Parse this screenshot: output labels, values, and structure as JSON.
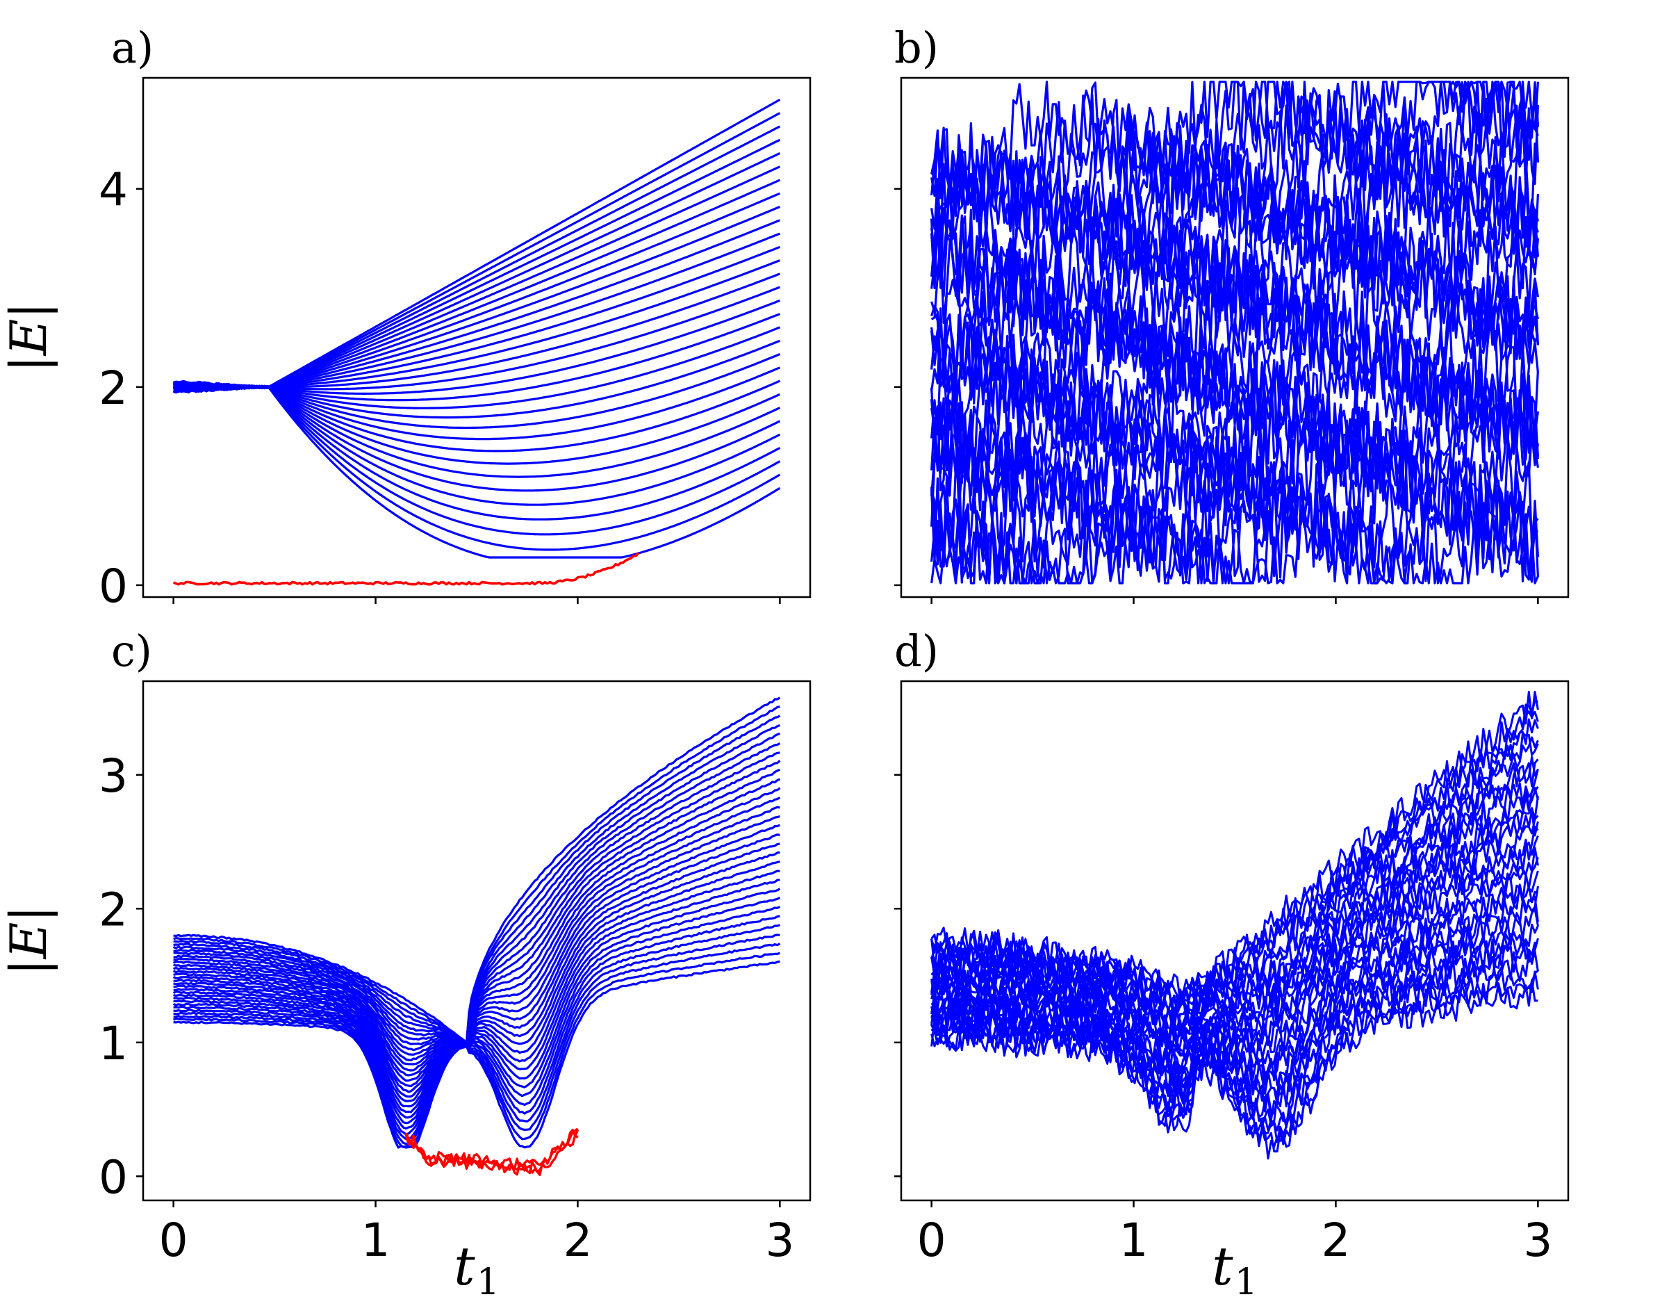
{
  "figure": {
    "panel_labels": [
      "a)",
      "b)",
      "c)",
      "d)"
    ],
    "ylabel": "|E|",
    "xlabel_main": "t",
    "xlabel_sub": "1"
  },
  "colors": {
    "bulk": "#0000ff",
    "edge": "#ff0000",
    "axes": "#000000",
    "background": "#ffffff"
  },
  "chart_data": [
    {
      "panel": "a)",
      "type": "line",
      "xlim": [
        -0.15,
        3.15
      ],
      "ylim": [
        -0.12,
        5.12
      ],
      "xticks": [
        0,
        1,
        2,
        3
      ],
      "yticks": [
        0,
        2,
        4
      ],
      "tick_labels_x": false,
      "tick_labels_y": true,
      "ytick_labels": [
        "0",
        "2",
        "4"
      ],
      "grid": false,
      "legend": "none",
      "series": [
        {
          "color": "blue",
          "kind": "bulk bands",
          "count": 30,
          "start_x": 0,
          "end_x": 3,
          "initial_value": 2.0,
          "initial_spread": [
            1.95,
            2.05
          ],
          "crossing_x": 0.47,
          "crossing_y": 2.0,
          "end_values_range": [
            0.98,
            4.9
          ],
          "lowest_band_min": {
            "x": 2.0,
            "y": 0.3
          }
        },
        {
          "color": "red",
          "kind": "zero mode",
          "x_range": [
            0,
            2.3
          ],
          "value_flat": 0.02,
          "rises_from_x": 1.8,
          "end_value": 0.32
        }
      ]
    },
    {
      "panel": "b)",
      "type": "line",
      "xlim": [
        -0.15,
        3.15
      ],
      "ylim": [
        -0.12,
        5.12
      ],
      "xticks": [
        0,
        1,
        2,
        3
      ],
      "yticks": [
        0,
        2,
        4
      ],
      "tick_labels_x": false,
      "tick_labels_y": false,
      "grid": false,
      "legend": "none",
      "series": [
        {
          "color": "blue",
          "kind": "disordered bands",
          "count": 30,
          "x_range": [
            0,
            3
          ],
          "value_range_start": [
            0.05,
            4.4
          ],
          "value_range_end": [
            0.05,
            5.12
          ]
        }
      ]
    },
    {
      "panel": "c)",
      "type": "line",
      "xlim": [
        -0.15,
        3.15
      ],
      "ylim": [
        -0.18,
        3.7
      ],
      "xticks": [
        0,
        1,
        2,
        3
      ],
      "yticks": [
        0,
        1,
        2,
        3
      ],
      "tick_labels_x": true,
      "tick_labels_y": true,
      "xtick_labels": [
        "0",
        "1",
        "2",
        "3"
      ],
      "ytick_labels": [
        "0",
        "1",
        "2",
        "3"
      ],
      "grid": false,
      "legend": "none",
      "series": [
        {
          "color": "blue",
          "kind": "bulk bands",
          "count": 30,
          "x_range": [
            0,
            3
          ],
          "start_values_range": [
            1.15,
            1.8
          ],
          "crossing_x": 1.45,
          "crossing_y": 1.0,
          "end_values_range": [
            1.6,
            3.58
          ],
          "gap_edges_x": [
            1.15,
            1.8
          ]
        },
        {
          "color": "red",
          "kind": "zero modes",
          "x_range": [
            1.15,
            2.0
          ],
          "value_range": [
            0.02,
            0.3
          ]
        }
      ]
    },
    {
      "panel": "d)",
      "type": "line",
      "xlim": [
        -0.15,
        3.15
      ],
      "ylim": [
        -0.18,
        3.7
      ],
      "xticks": [
        0,
        1,
        2,
        3
      ],
      "yticks": [
        0,
        1,
        2,
        3
      ],
      "tick_labels_x": true,
      "tick_labels_y": false,
      "xtick_labels": [
        "0",
        "1",
        "2",
        "3"
      ],
      "grid": false,
      "legend": "none",
      "series": [
        {
          "color": "blue",
          "kind": "disordered bands",
          "count": 30,
          "x_range": [
            0,
            3
          ],
          "start_values_range": [
            1.02,
            1.75
          ],
          "min_region_x": [
            1.2,
            1.9
          ],
          "min_value": 0.02,
          "end_values_range": [
            1.38,
            3.58
          ]
        }
      ]
    }
  ]
}
